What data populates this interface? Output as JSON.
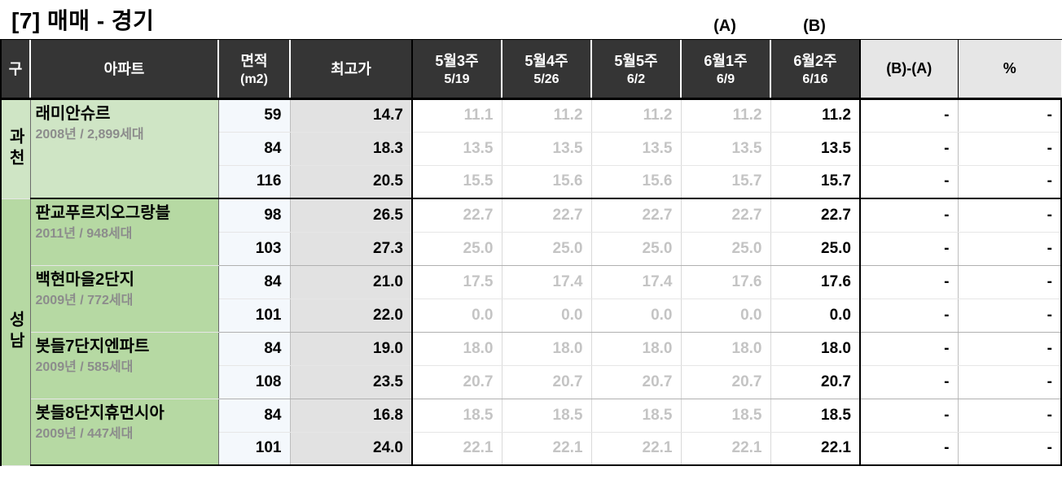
{
  "title_bracketed": "[7]",
  "title_text": " 매매 - 경기",
  "indicators": {
    "a": "(A)",
    "b": "(B)"
  },
  "header": {
    "district": "구",
    "apt": "아파트",
    "area_line1": "면적",
    "area_line2": "(m2)",
    "high": "최고가",
    "weeks": [
      {
        "l1": "5월3주",
        "l2": "5/19"
      },
      {
        "l1": "5월4주",
        "l2": "5/26"
      },
      {
        "l1": "5월5주",
        "l2": "6/2"
      },
      {
        "l1": "6월1주",
        "l2": "6/9"
      },
      {
        "l1": "6월2주",
        "l2": "6/16"
      }
    ],
    "diff": "(B)-(A)",
    "pct": "%"
  },
  "col_widths": {
    "district": 36,
    "apt": 231,
    "area": 88,
    "high": 150,
    "week": 110,
    "diff": 120,
    "pct": 127
  },
  "districts": [
    {
      "name": "과천",
      "shade": "dk",
      "apts": [
        {
          "name": "래미안슈르",
          "meta": "2008년 / 2,899세대",
          "rows": [
            {
              "area": "59",
              "high": "14.7",
              "w": [
                "11.1",
                "11.2",
                "11.2",
                "11.2",
                "11.2"
              ],
              "diff": "-",
              "pct": "-"
            },
            {
              "area": "84",
              "high": "18.3",
              "w": [
                "13.5",
                "13.5",
                "13.5",
                "13.5",
                "13.5"
              ],
              "diff": "-",
              "pct": "-"
            },
            {
              "area": "116",
              "high": "20.5",
              "w": [
                "15.5",
                "15.6",
                "15.6",
                "15.7",
                "15.7"
              ],
              "diff": "-",
              "pct": "-"
            }
          ]
        }
      ]
    },
    {
      "name": "성남",
      "shade": "sn",
      "apts": [
        {
          "name": "판교푸르지오그랑블",
          "meta": "2011년 / 948세대",
          "rows": [
            {
              "area": "98",
              "high": "26.5",
              "w": [
                "22.7",
                "22.7",
                "22.7",
                "22.7",
                "22.7"
              ],
              "diff": "-",
              "pct": "-"
            },
            {
              "area": "103",
              "high": "27.3",
              "w": [
                "25.0",
                "25.0",
                "25.0",
                "25.0",
                "25.0"
              ],
              "diff": "-",
              "pct": "-"
            }
          ]
        },
        {
          "name": "백현마을2단지",
          "meta": "2009년 / 772세대",
          "rows": [
            {
              "area": "84",
              "high": "21.0",
              "w": [
                "17.5",
                "17.4",
                "17.4",
                "17.6",
                "17.6"
              ],
              "diff": "-",
              "pct": "-"
            },
            {
              "area": "101",
              "high": "22.0",
              "w": [
                "0.0",
                "0.0",
                "0.0",
                "0.0",
                "0.0"
              ],
              "diff": "-",
              "pct": "-"
            }
          ]
        },
        {
          "name": "봇들7단지엔파트",
          "meta": "2009년 / 585세대",
          "rows": [
            {
              "area": "84",
              "high": "19.0",
              "w": [
                "18.0",
                "18.0",
                "18.0",
                "18.0",
                "18.0"
              ],
              "diff": "-",
              "pct": "-"
            },
            {
              "area": "108",
              "high": "23.5",
              "w": [
                "20.7",
                "20.7",
                "20.7",
                "20.7",
                "20.7"
              ],
              "diff": "-",
              "pct": "-"
            }
          ]
        },
        {
          "name": "봇들8단지휴먼시아",
          "meta": "2009년 / 447세대",
          "rows": [
            {
              "area": "84",
              "high": "16.8",
              "w": [
                "18.5",
                "18.5",
                "18.5",
                "18.5",
                "18.5"
              ],
              "diff": "-",
              "pct": "-"
            },
            {
              "area": "101",
              "high": "24.0",
              "w": [
                "22.1",
                "22.1",
                "22.1",
                "22.1",
                "22.1"
              ],
              "diff": "-",
              "pct": "-"
            }
          ]
        }
      ]
    }
  ]
}
